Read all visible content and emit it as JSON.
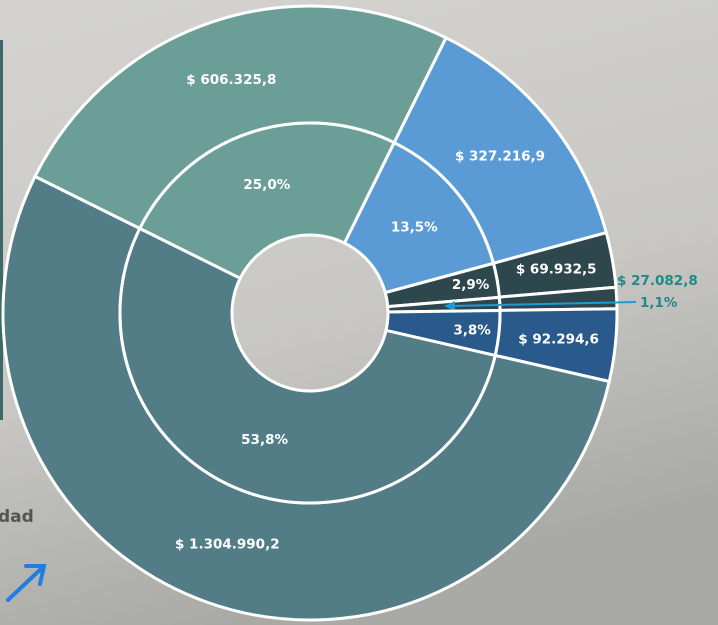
{
  "background_text": "dad",
  "chart_data": {
    "type": "sunburst",
    "values": [
      606325.8,
      327216.9,
      69932.5,
      27082.8,
      92294.6,
      1304990.2
    ],
    "value_labels": [
      "$ 606.325,8",
      "$ 327.216,9",
      "$ 69.932,5",
      "$ 27.082,8",
      "$ 92.294,6",
      "$ 1.304.990,2"
    ],
    "percentages": [
      25.0,
      13.5,
      2.9,
      1.1,
      3.8,
      53.8
    ],
    "percentage_labels": [
      "25,0%",
      "13,5%",
      "2,9%",
      "1,1%",
      "3,8%",
      "53,8%"
    ],
    "colors": [
      "#6a9e97",
      "#5b9bd5",
      "#2e474d",
      "#2e474d",
      "#2a5a8c",
      "#527d87"
    ]
  }
}
